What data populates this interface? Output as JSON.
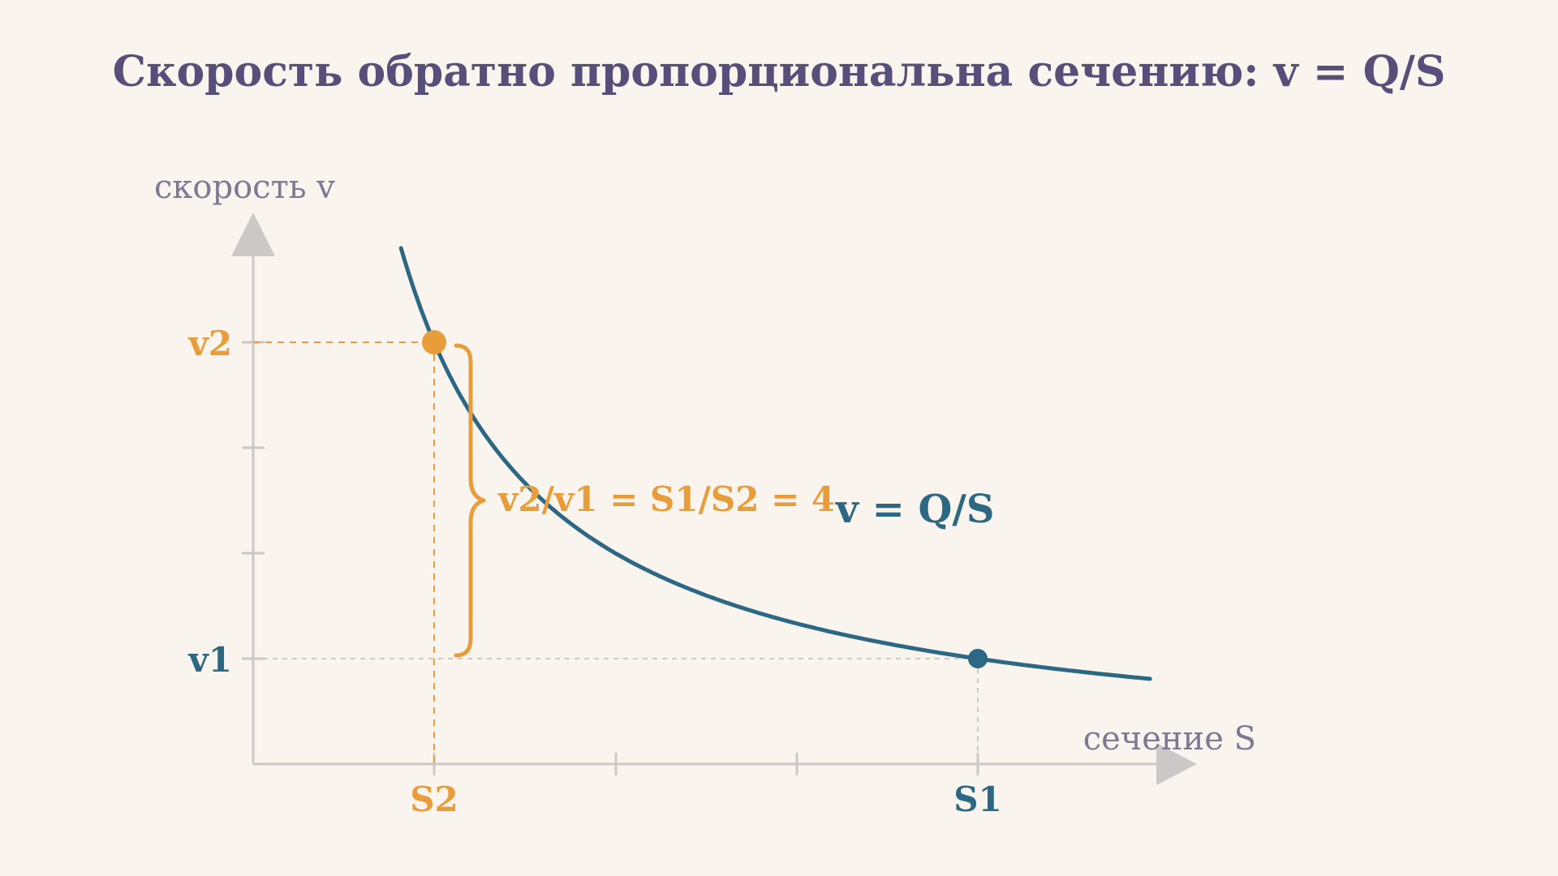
{
  "title": "Скорость обратно пропорциональна сечению: v = Q/S",
  "y_axis_label": "скорость v",
  "x_axis_label": "сечение S",
  "curve_label": "v = Q/S",
  "ratio_label": "v2/v1 = S1/S2 = 4",
  "point_high": {
    "x_label": "S2",
    "y_label": "v2"
  },
  "point_low": {
    "x_label": "S1",
    "y_label": "v1"
  },
  "colors": {
    "background": "#faf4ee",
    "title": "#574f7a",
    "axis": "#cdc8c8",
    "curve": "#2c6783",
    "accent": "#e89d3a",
    "axis_label": "#7d7894"
  },
  "chart_data": {
    "type": "line",
    "title": "Скорость обратно пропорциональна сечению: v = Q/S",
    "xlabel": "сечение S",
    "ylabel": "скорость v",
    "relation": "v = Q/S",
    "x_ticks": [
      "S2",
      "",
      "",
      "S1"
    ],
    "y_ticks": [
      "v1",
      "",
      "",
      "v2"
    ],
    "points": [
      {
        "label": "S2",
        "x": 1,
        "y": 4
      },
      {
        "label": "S1",
        "x": 4,
        "y": 1
      }
    ],
    "ratio": 4,
    "xlim": [
      0,
      5
    ],
    "ylim": [
      0,
      5
    ],
    "grid": false,
    "legend": "none"
  }
}
